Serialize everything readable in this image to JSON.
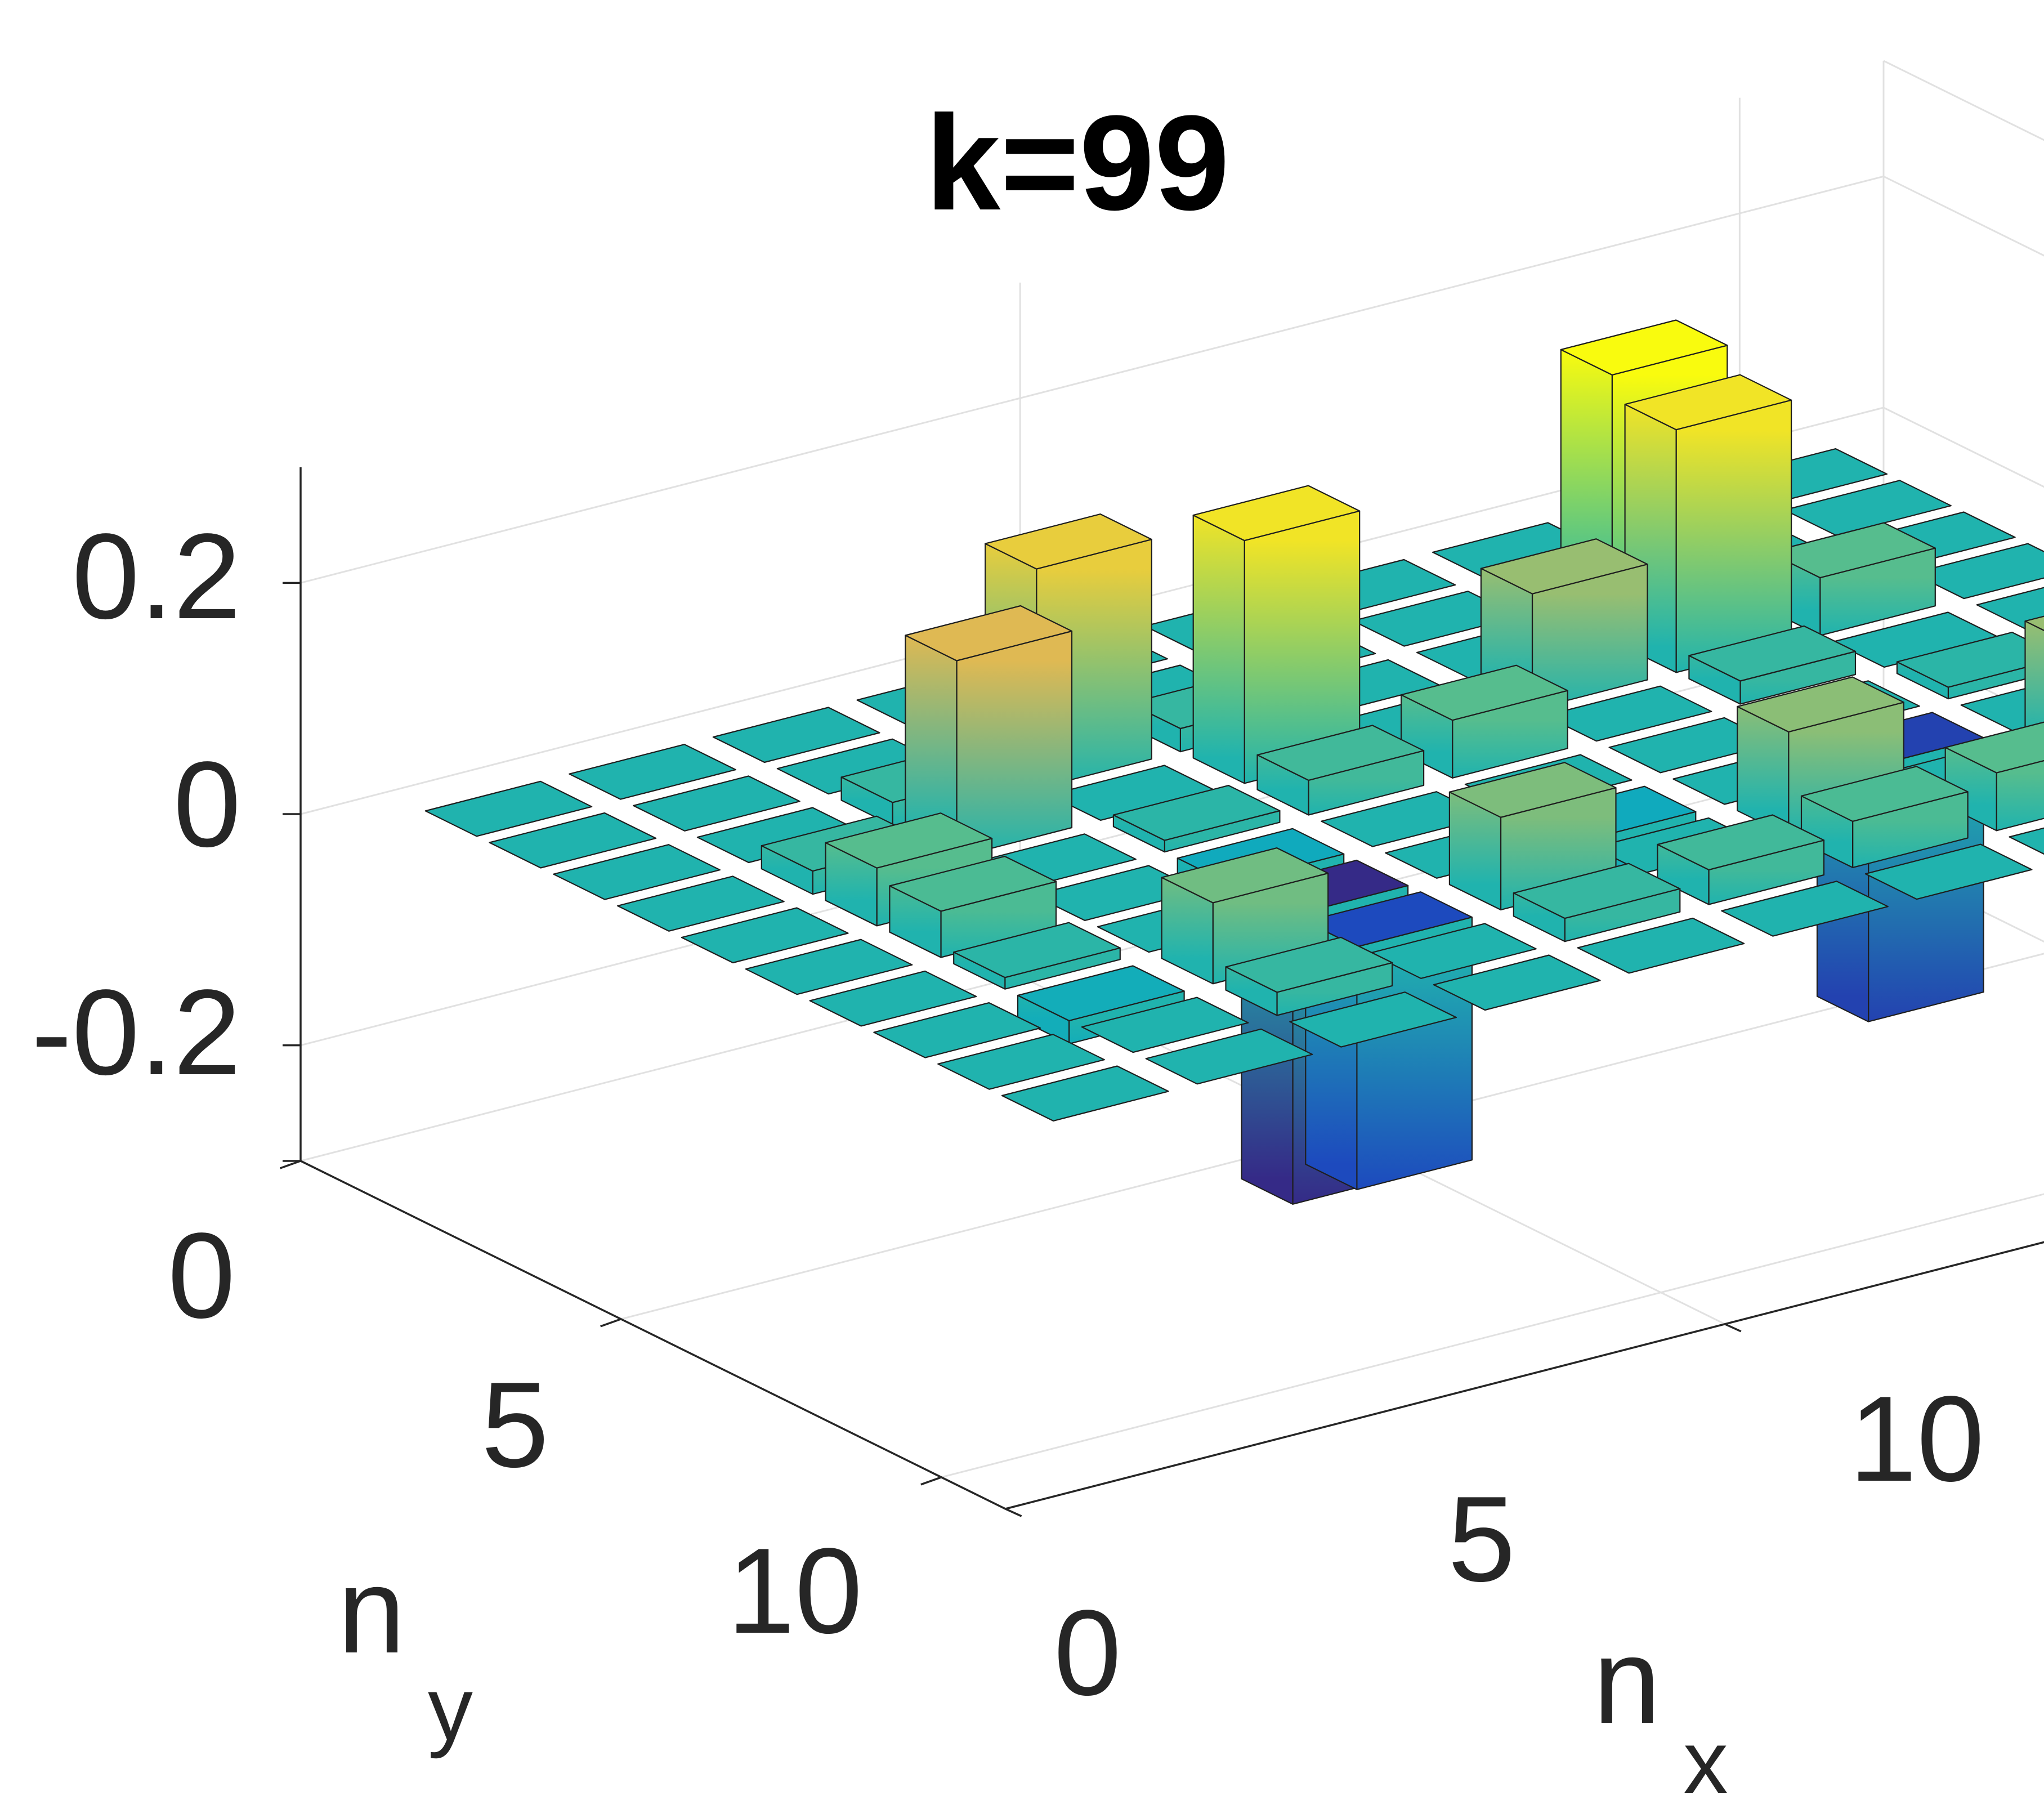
{
  "chart_data": {
    "type": "bar3",
    "title": "k=99",
    "xlabel": {
      "main": "n",
      "sub": "x"
    },
    "ylabel": {
      "main": "n",
      "sub": "y"
    },
    "zlabel": "",
    "x_ticks": [
      "0",
      "5",
      "10"
    ],
    "y_ticks": [
      "0",
      "5",
      "10"
    ],
    "z_ticks": [
      "0.2",
      "0",
      "-0.2"
    ],
    "xlim": [
      0,
      11
    ],
    "ylim": [
      0,
      11
    ],
    "zlim": [
      -0.3,
      0.3
    ],
    "grid": true,
    "colormap": "parula",
    "nx": [
      1,
      2,
      3,
      4,
      5,
      6,
      7,
      8,
      9,
      10
    ],
    "ny": [
      1,
      2,
      3,
      4,
      5,
      6,
      7,
      8,
      9,
      10
    ],
    "z_rows_by_ny": [
      [
        0.0,
        0.0,
        0.0,
        0.0,
        0.0,
        0.0,
        0.0,
        0.0,
        0.0,
        0.0
      ],
      [
        0.0,
        0.0,
        0.0,
        0.0,
        0.0,
        0.0,
        0.0,
        0.0,
        0.0,
        0.0
      ],
      [
        0.0,
        0.0,
        0.02,
        0.19,
        0.02,
        0.0,
        0.0,
        0.23,
        0.0,
        0.0
      ],
      [
        0.0,
        0.02,
        0.17,
        0.0,
        0.21,
        0.0,
        0.1,
        0.21,
        0.05,
        0.0
      ],
      [
        0.0,
        0.05,
        0.0,
        0.01,
        0.03,
        0.05,
        0.0,
        0.02,
        0.0,
        0.0
      ],
      [
        0.0,
        0.04,
        0.0,
        -0.03,
        0.0,
        0.0,
        0.0,
        0.0,
        0.01,
        0.0
      ],
      [
        0.0,
        0.01,
        0.0,
        -0.25,
        0.0,
        -0.03,
        0.0,
        -0.22,
        0.0,
        0.0
      ],
      [
        0.0,
        -0.02,
        0.07,
        -0.21,
        0.08,
        0.0,
        0.09,
        0.0,
        0.1,
        0.0
      ],
      [
        0.0,
        0.0,
        0.02,
        0.0,
        0.02,
        0.03,
        0.04,
        0.05,
        0.02,
        0.0
      ],
      [
        0.0,
        0.0,
        0.0,
        0.0,
        0.0,
        0.0,
        0.0,
        0.0,
        0.0,
        0.0
      ]
    ]
  }
}
